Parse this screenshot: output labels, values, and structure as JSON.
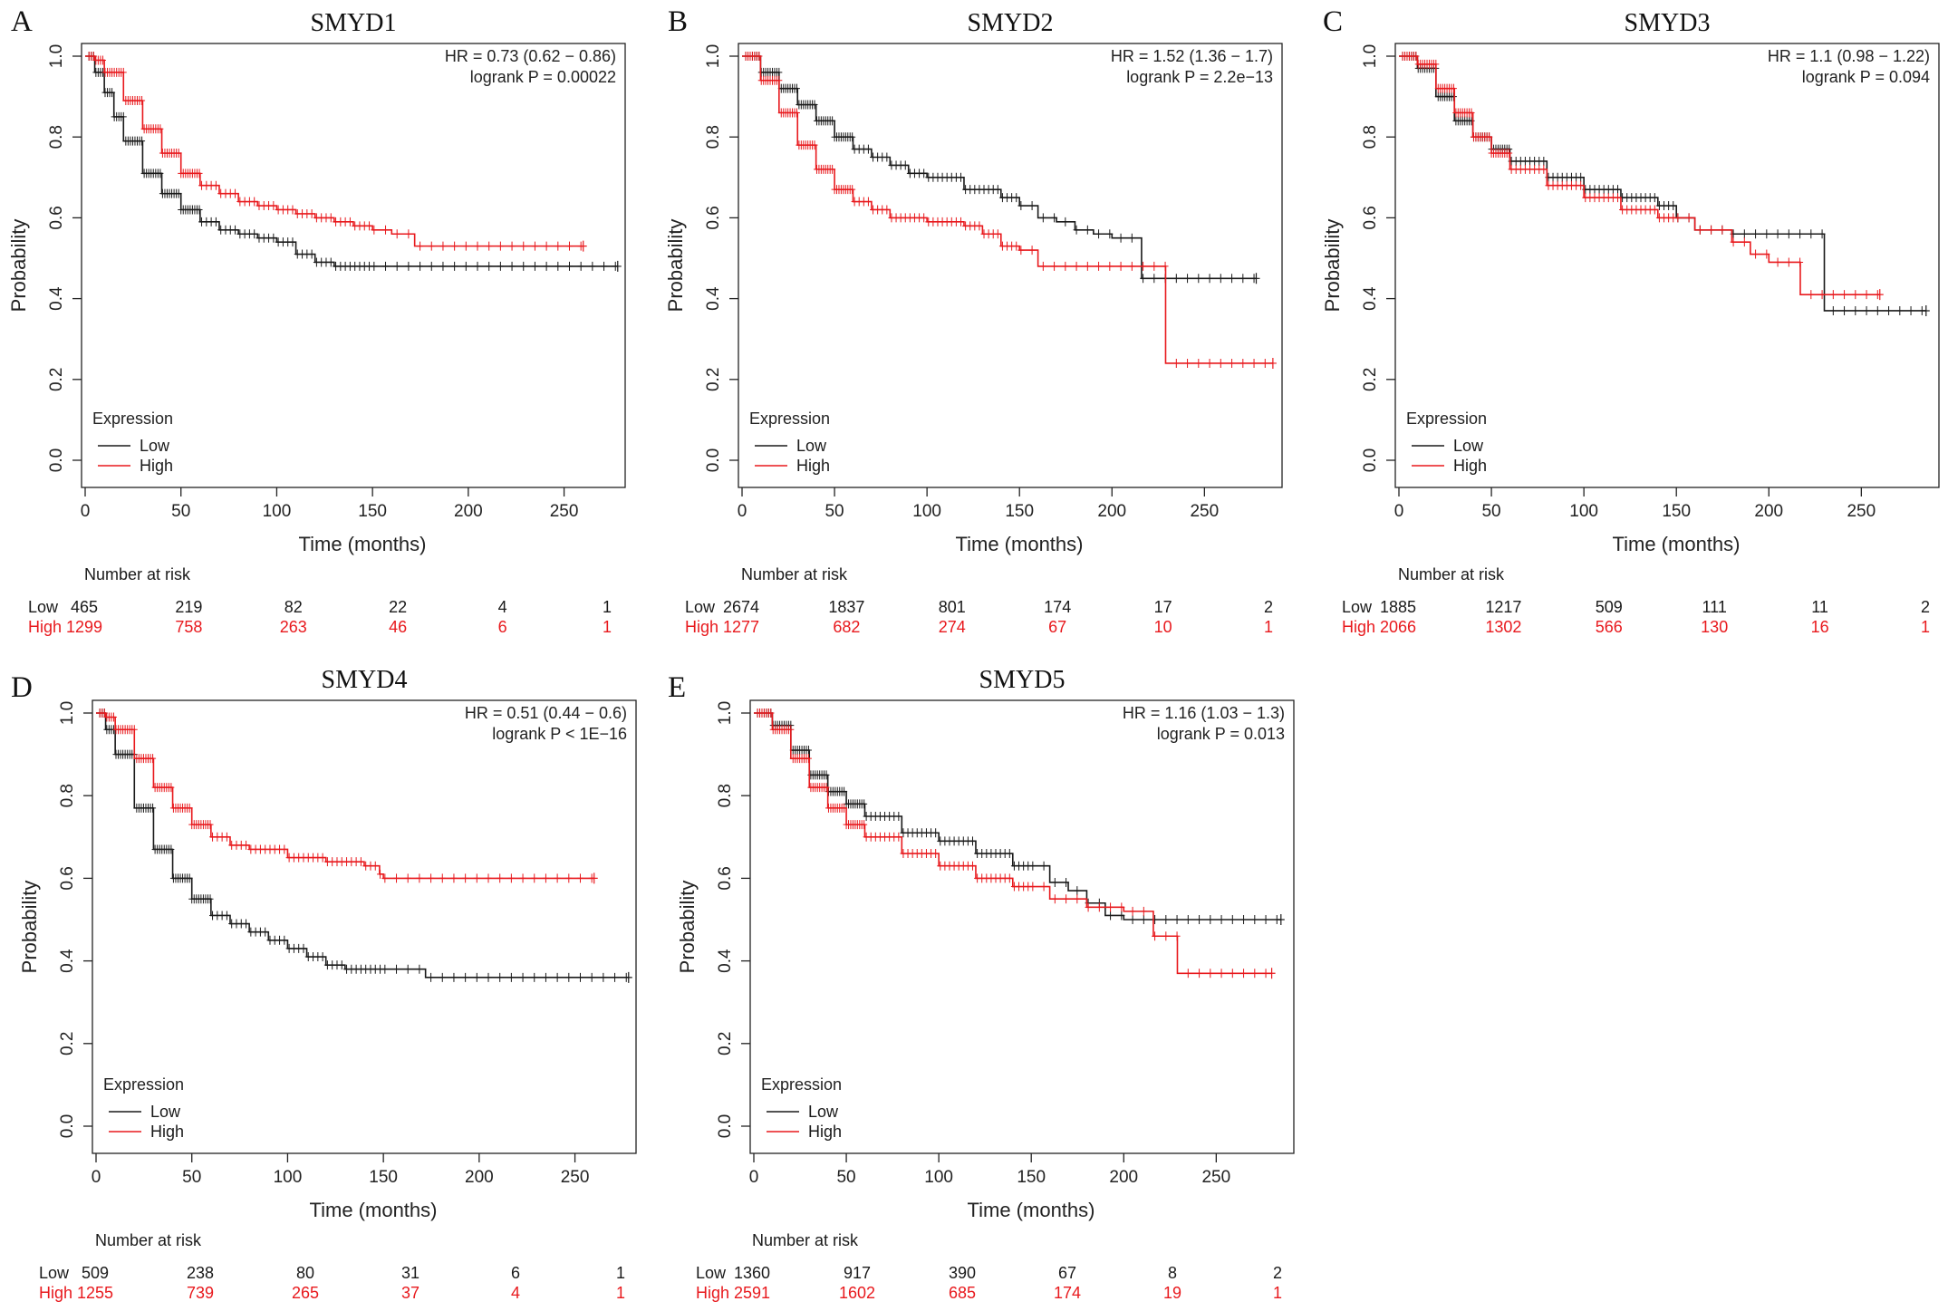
{
  "figure": {
    "colors": {
      "low": "#1a1a1a",
      "high": "#e8191d",
      "axis": "#222222"
    }
  },
  "chart_data": [
    {
      "type": "line",
      "letter": "A",
      "title": "SMYD1",
      "xlabel": "Time (months)",
      "ylabel": "Probability",
      "xlim": [
        0,
        280
      ],
      "ylim": [
        0,
        1
      ],
      "xticks": [
        0,
        50,
        100,
        150,
        200,
        250
      ],
      "yticks": [
        "0.0",
        "0.2",
        "0.4",
        "0.6",
        "0.8",
        "1.0"
      ],
      "stats": [
        "HR = 0.73 (0.62 − 0.86)",
        "logrank P = 0.00022"
      ],
      "legend": {
        "title": "Expression",
        "low": "Low",
        "high": "High"
      },
      "series": [
        {
          "name": "Low",
          "x": [
            0,
            5,
            10,
            15,
            20,
            30,
            40,
            50,
            60,
            70,
            80,
            90,
            100,
            110,
            120,
            130,
            140,
            160,
            200,
            250,
            278
          ],
          "values": [
            1,
            0.96,
            0.91,
            0.85,
            0.79,
            0.71,
            0.66,
            0.62,
            0.59,
            0.57,
            0.56,
            0.55,
            0.54,
            0.51,
            0.49,
            0.48,
            0.48,
            0.48,
            0.48,
            0.48,
            0.48
          ]
        },
        {
          "name": "High",
          "x": [
            0,
            5,
            10,
            20,
            30,
            40,
            50,
            60,
            70,
            80,
            90,
            100,
            110,
            120,
            130,
            140,
            150,
            160,
            170,
            172,
            200,
            260
          ],
          "values": [
            1,
            0.99,
            0.96,
            0.89,
            0.82,
            0.76,
            0.71,
            0.68,
            0.66,
            0.64,
            0.63,
            0.62,
            0.61,
            0.6,
            0.59,
            0.58,
            0.57,
            0.56,
            0.56,
            0.53,
            0.53,
            0.53
          ]
        }
      ],
      "risk": {
        "heading": "Number at risk",
        "low_label": "Low",
        "high_label": "High",
        "low": [
          "465",
          "219",
          "82",
          "22",
          "4",
          "1"
        ],
        "high": [
          "1299",
          "758",
          "263",
          "46",
          "6",
          "1"
        ]
      }
    },
    {
      "type": "line",
      "letter": "B",
      "title": "SMYD2",
      "xlabel": "Time (months)",
      "ylabel": "Probability",
      "xlim": [
        0,
        290
      ],
      "ylim": [
        0,
        1
      ],
      "xticks": [
        0,
        50,
        100,
        150,
        200,
        250
      ],
      "yticks": [
        "0.0",
        "0.2",
        "0.4",
        "0.6",
        "0.8",
        "1.0"
      ],
      "stats": [
        "HR = 1.52 (1.36 − 1.7)",
        "logrank P = 2.2e−13"
      ],
      "legend": {
        "title": "Expression",
        "low": "Low",
        "high": "High"
      },
      "series": [
        {
          "name": "Low",
          "x": [
            0,
            10,
            20,
            30,
            40,
            50,
            60,
            70,
            80,
            90,
            100,
            120,
            140,
            150,
            160,
            170,
            180,
            190,
            200,
            215,
            216,
            240,
            278
          ],
          "values": [
            1,
            0.96,
            0.92,
            0.88,
            0.84,
            0.8,
            0.77,
            0.75,
            0.73,
            0.71,
            0.7,
            0.67,
            0.65,
            0.63,
            0.6,
            0.59,
            0.57,
            0.56,
            0.55,
            0.55,
            0.45,
            0.45,
            0.45
          ]
        },
        {
          "name": "High",
          "x": [
            0,
            10,
            20,
            30,
            40,
            50,
            60,
            70,
            80,
            100,
            120,
            130,
            140,
            150,
            160,
            170,
            200,
            228,
            229,
            287
          ],
          "values": [
            1,
            0.94,
            0.86,
            0.78,
            0.72,
            0.67,
            0.64,
            0.62,
            0.6,
            0.59,
            0.58,
            0.56,
            0.53,
            0.52,
            0.48,
            0.48,
            0.48,
            0.48,
            0.24,
            0.24
          ]
        }
      ],
      "risk": {
        "heading": "Number at risk",
        "low_label": "Low",
        "high_label": "High",
        "low": [
          "2674",
          "1837",
          "801",
          "174",
          "17",
          "2"
        ],
        "high": [
          "1277",
          "682",
          "274",
          "67",
          "10",
          "1"
        ]
      }
    },
    {
      "type": "line",
      "letter": "C",
      "title": "SMYD3",
      "xlabel": "Time (months)",
      "ylabel": "Probability",
      "xlim": [
        0,
        290
      ],
      "ylim": [
        0,
        1
      ],
      "xticks": [
        0,
        50,
        100,
        150,
        200,
        250
      ],
      "yticks": [
        "0.0",
        "0.2",
        "0.4",
        "0.6",
        "0.8",
        "1.0"
      ],
      "stats": [
        "HR = 1.1 (0.98 − 1.22)",
        "logrank P = 0.094"
      ],
      "legend": {
        "title": "Expression",
        "low": "Low",
        "high": "High"
      },
      "series": [
        {
          "name": "Low",
          "x": [
            0,
            10,
            20,
            30,
            40,
            50,
            60,
            80,
            100,
            120,
            140,
            150,
            160,
            180,
            200,
            229,
            230,
            285
          ],
          "values": [
            1,
            0.97,
            0.9,
            0.84,
            0.8,
            0.77,
            0.74,
            0.7,
            0.67,
            0.65,
            0.63,
            0.6,
            0.57,
            0.56,
            0.56,
            0.56,
            0.37,
            0.37
          ]
        },
        {
          "name": "High",
          "x": [
            0,
            10,
            20,
            30,
            40,
            50,
            60,
            80,
            100,
            120,
            140,
            160,
            180,
            190,
            200,
            216,
            217,
            260
          ],
          "values": [
            1,
            0.98,
            0.92,
            0.86,
            0.8,
            0.76,
            0.72,
            0.68,
            0.65,
            0.62,
            0.6,
            0.57,
            0.54,
            0.51,
            0.49,
            0.49,
            0.41,
            0.41
          ]
        }
      ],
      "risk": {
        "heading": "Number at risk",
        "low_label": "Low",
        "high_label": "High",
        "low": [
          "1885",
          "1217",
          "509",
          "111",
          "11",
          "2"
        ],
        "high": [
          "2066",
          "1302",
          "566",
          "130",
          "16",
          "1"
        ]
      }
    },
    {
      "type": "line",
      "letter": "D",
      "title": "SMYD4",
      "xlabel": "Time (months)",
      "ylabel": "Probability",
      "xlim": [
        0,
        280
      ],
      "ylim": [
        0,
        1
      ],
      "xticks": [
        0,
        50,
        100,
        150,
        200,
        250
      ],
      "yticks": [
        "0.0",
        "0.2",
        "0.4",
        "0.6",
        "0.8",
        "1.0"
      ],
      "stats": [
        "HR = 0.51 (0.44 − 0.6)",
        "logrank P < 1E−16"
      ],
      "legend": {
        "title": "Expression",
        "low": "Low",
        "high": "High"
      },
      "series": [
        {
          "name": "Low",
          "x": [
            0,
            5,
            10,
            20,
            30,
            40,
            50,
            60,
            70,
            80,
            90,
            100,
            110,
            120,
            130,
            150,
            170,
            172,
            200,
            278
          ],
          "values": [
            1,
            0.96,
            0.9,
            0.77,
            0.67,
            0.6,
            0.55,
            0.51,
            0.49,
            0.47,
            0.45,
            0.43,
            0.41,
            0.39,
            0.38,
            0.38,
            0.38,
            0.36,
            0.36,
            0.36
          ]
        },
        {
          "name": "High",
          "x": [
            0,
            5,
            10,
            20,
            30,
            40,
            50,
            60,
            70,
            80,
            100,
            120,
            140,
            148,
            150,
            200,
            260
          ],
          "values": [
            1,
            0.99,
            0.96,
            0.89,
            0.82,
            0.77,
            0.73,
            0.7,
            0.68,
            0.67,
            0.65,
            0.64,
            0.63,
            0.61,
            0.6,
            0.6,
            0.6
          ]
        }
      ],
      "risk": {
        "heading": "Number at risk",
        "low_label": "Low",
        "high_label": "High",
        "low": [
          "509",
          "238",
          "80",
          "31",
          "6",
          "1"
        ],
        "high": [
          "1255",
          "739",
          "265",
          "37",
          "4",
          "1"
        ]
      }
    },
    {
      "type": "line",
      "letter": "E",
      "title": "SMYD5",
      "xlabel": "Time (months)",
      "ylabel": "Probability",
      "xlim": [
        0,
        290
      ],
      "ylim": [
        0,
        1
      ],
      "xticks": [
        0,
        50,
        100,
        150,
        200,
        250
      ],
      "yticks": [
        "0.0",
        "0.2",
        "0.4",
        "0.6",
        "0.8",
        "1.0"
      ],
      "stats": [
        "HR = 1.16 (1.03 − 1.3)",
        "logrank P = 0.013"
      ],
      "legend": {
        "title": "Expression",
        "low": "Low",
        "high": "High"
      },
      "series": [
        {
          "name": "Low",
          "x": [
            0,
            10,
            20,
            30,
            40,
            50,
            60,
            80,
            100,
            120,
            140,
            160,
            170,
            180,
            190,
            200,
            250,
            285
          ],
          "values": [
            1,
            0.97,
            0.91,
            0.85,
            0.81,
            0.78,
            0.75,
            0.71,
            0.69,
            0.66,
            0.63,
            0.59,
            0.57,
            0.54,
            0.51,
            0.5,
            0.5,
            0.5
          ]
        },
        {
          "name": "High",
          "x": [
            0,
            10,
            20,
            30,
            40,
            50,
            60,
            80,
            100,
            120,
            140,
            160,
            180,
            200,
            215,
            216,
            228,
            229,
            280
          ],
          "values": [
            1,
            0.96,
            0.89,
            0.82,
            0.77,
            0.73,
            0.7,
            0.66,
            0.63,
            0.6,
            0.58,
            0.55,
            0.53,
            0.52,
            0.52,
            0.46,
            0.46,
            0.37,
            0.37
          ]
        }
      ],
      "risk": {
        "heading": "Number at risk",
        "low_label": "Low",
        "high_label": "High",
        "low": [
          "1360",
          "917",
          "390",
          "67",
          "8",
          "2"
        ],
        "high": [
          "2591",
          "1602",
          "685",
          "174",
          "19",
          "1"
        ]
      }
    }
  ]
}
